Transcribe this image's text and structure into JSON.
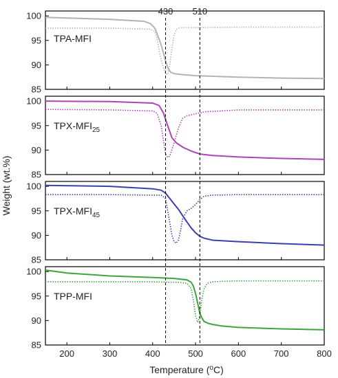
{
  "chart_data": {
    "type": "line",
    "xlabel_main": "Temperature (",
    "xlabel_sup": "o",
    "xlabel_tail": "C)",
    "ylabel": "Weight (wt.%)",
    "xlim": [
      150,
      800
    ],
    "x_ticks": [
      200,
      300,
      400,
      500,
      600,
      700,
      800
    ],
    "reference_lines": [
      {
        "x": 430,
        "label": "430"
      },
      {
        "x": 510,
        "label": "510"
      }
    ],
    "panels": [
      {
        "label": "TPA-MFI",
        "label_sub": "",
        "color": "#b3b3b3",
        "ylim": [
          85,
          101
        ],
        "y_ticks": [
          85,
          90,
          95,
          100
        ],
        "weight": {
          "x": [
            150,
            300,
            380,
            395,
            405,
            412,
            420,
            425,
            430,
            436,
            442,
            450,
            470,
            500,
            600,
            700,
            800
          ],
          "y": [
            99.7,
            99.3,
            98.9,
            98.4,
            97.5,
            96,
            94,
            92.5,
            90.8,
            89.3,
            88.5,
            88.2,
            88,
            87.8,
            87.5,
            87.3,
            87.2
          ]
        },
        "derivative": {
          "x": [
            150,
            300,
            395,
            405,
            410,
            415,
            420,
            425,
            430,
            435,
            440,
            445,
            450,
            455,
            460,
            470,
            500,
            600,
            700,
            800
          ],
          "y": [
            97.5,
            97.5,
            97.3,
            96.8,
            95.5,
            93,
            91,
            89.5,
            88.2,
            88,
            90,
            93.5,
            96,
            97.2,
            97.5,
            97.6,
            97.6,
            97.7,
            97.7,
            97.7
          ]
        }
      },
      {
        "label": "TPX-MFI",
        "label_sub": "25",
        "color": "#b03fb8",
        "ylim": [
          85,
          101
        ],
        "y_ticks": [
          85,
          90,
          95,
          100
        ],
        "weight": {
          "x": [
            150,
            300,
            400,
            415,
            425,
            435,
            445,
            455,
            470,
            490,
            510,
            540,
            600,
            700,
            800
          ],
          "y": [
            100,
            99.9,
            99.6,
            99.1,
            97.6,
            95,
            92.5,
            91.5,
            90.6,
            89.8,
            89.2,
            88.9,
            88.6,
            88.3,
            88.1
          ]
        },
        "derivative": {
          "x": [
            150,
            300,
            400,
            410,
            420,
            425,
            430,
            435,
            440,
            450,
            460,
            470,
            480,
            490,
            500,
            520,
            600,
            700,
            800
          ],
          "y": [
            98.3,
            98.2,
            98,
            97.5,
            95,
            92,
            89.3,
            88.5,
            88.8,
            91.5,
            94.5,
            96.5,
            97,
            97.2,
            97.4,
            97.8,
            98.2,
            98.2,
            98.2
          ]
        }
      },
      {
        "label": "TPX-MFI",
        "label_sub": "45",
        "color": "#3a3fb0",
        "ylim": [
          85,
          101
        ],
        "y_ticks": [
          85,
          90,
          95,
          100
        ],
        "weight": {
          "x": [
            150,
            300,
            400,
            420,
            430,
            440,
            450,
            460,
            470,
            480,
            490,
            500,
            510,
            520,
            540,
            600,
            700,
            800
          ],
          "y": [
            100.2,
            100,
            99.5,
            99.2,
            98.6,
            97.5,
            96.4,
            95.3,
            94,
            92.7,
            91.5,
            90.5,
            89.8,
            89.4,
            89,
            88.7,
            88.3,
            88
          ]
        },
        "derivative": {
          "x": [
            150,
            300,
            400,
            420,
            430,
            435,
            440,
            445,
            450,
            455,
            460,
            465,
            470,
            480,
            490,
            500,
            510,
            520,
            540,
            600,
            700,
            800
          ],
          "y": [
            98.3,
            98.3,
            98.2,
            98.2,
            97.5,
            95,
            92.5,
            90,
            88.7,
            88.4,
            89,
            91,
            93.5,
            95,
            95.5,
            96.3,
            97.3,
            98,
            98.2,
            98.3,
            98.3,
            98.3
          ]
        }
      },
      {
        "label": "TPP-MFI",
        "label_sub": "",
        "color": "#3ba53b",
        "ylim": [
          85,
          101
        ],
        "y_ticks": [
          85,
          90,
          95,
          100
        ],
        "weight": {
          "x": [
            150,
            200,
            300,
            400,
            450,
            480,
            490,
            495,
            500,
            505,
            510,
            515,
            520,
            530,
            540,
            560,
            600,
            700,
            800
          ],
          "y": [
            100.3,
            99.7,
            99.1,
            98.8,
            98.6,
            98.3,
            97.8,
            97,
            95.5,
            93.5,
            91.5,
            90.5,
            89.8,
            89.4,
            89.2,
            88.9,
            88.6,
            88.3,
            88.1
          ]
        },
        "derivative": {
          "x": [
            150,
            300,
            400,
            460,
            480,
            490,
            495,
            500,
            505,
            510,
            515,
            520,
            525,
            530,
            540,
            560,
            600,
            700,
            800
          ],
          "y": [
            97.9,
            97.9,
            97.9,
            97.8,
            97.6,
            96.5,
            94,
            91,
            89.6,
            91,
            94.5,
            96.5,
            97.3,
            97.7,
            97.9,
            98,
            98.1,
            98.1,
            98.1
          ]
        }
      }
    ]
  }
}
